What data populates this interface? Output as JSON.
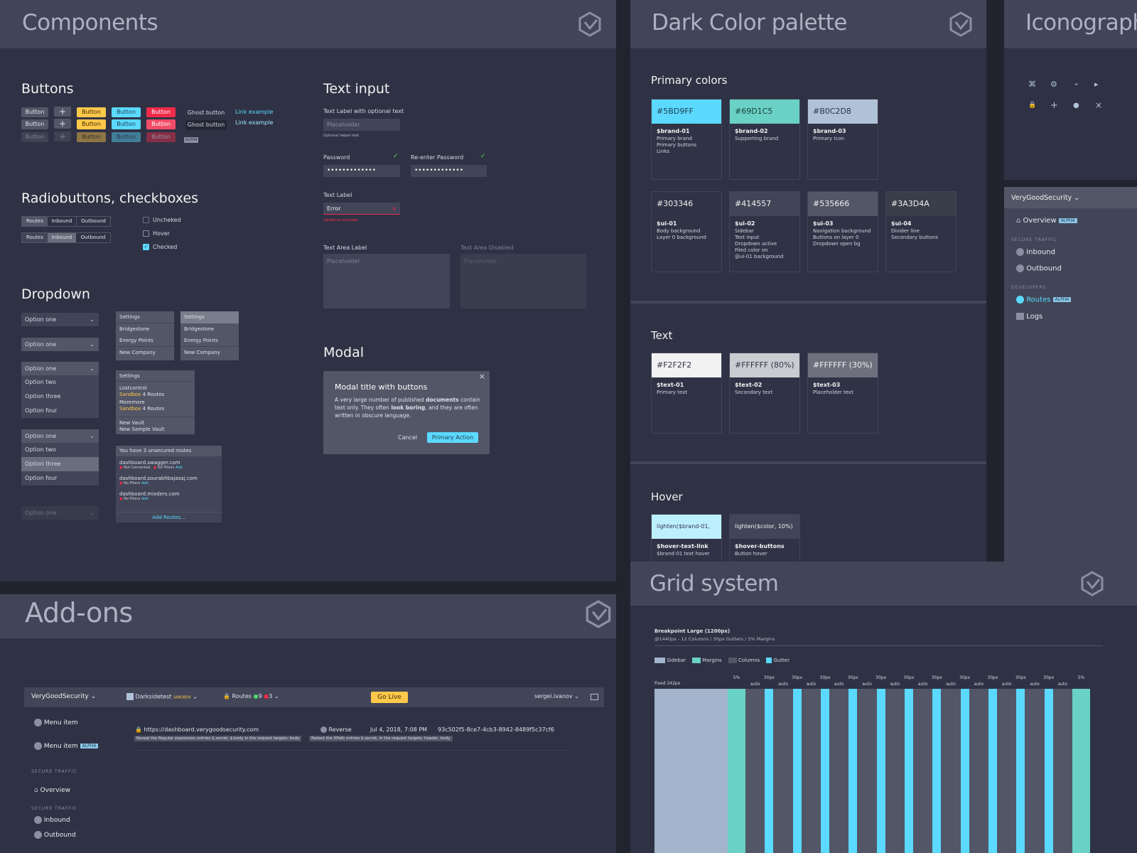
{
  "components": {
    "title": "Components",
    "buttons": {
      "title": "Buttons",
      "button_label": "Button",
      "plus_label": "+",
      "ghost_label": "Ghost button",
      "link_label": "Link example",
      "alpha": "ALPHA"
    },
    "radios": {
      "title": "Radiobuttons, checkboxes",
      "segments": [
        "Routes",
        "Inbound",
        "Outbound"
      ],
      "checkbox_labels": [
        "Uncheked",
        "Hover",
        "Checked"
      ],
      "check_mark": "✓"
    },
    "dropdown": {
      "title": "Dropdown",
      "selected": "Option one",
      "chevron": "⌄",
      "options": [
        "Option two",
        "Option three",
        "Option four"
      ],
      "menu_header": "Settings",
      "menu_items": [
        "Bridgestone",
        "Energy Points",
        "New Company"
      ],
      "vault_items": [
        {
          "name": "Lostcontrol",
          "env": "Sandbox",
          "routes": "4 Routes"
        },
        {
          "name": "Moremore",
          "env": "Sandbox",
          "routes": "4 Routes"
        }
      ],
      "vault_new": [
        "New Vault",
        "New Sample Vault"
      ],
      "unsecured": {
        "header": "You have 3 unsecured routes",
        "routes": [
          {
            "host": "dashboard.swagger.com",
            "status": "Not Connected",
            "filters": "No Filters",
            "add": "Add"
          },
          {
            "host": "dashboard.sourabhbajasaj.com",
            "filters": "No Filters",
            "add": "Add"
          },
          {
            "host": "dashboard.mixders.com",
            "filters": "No Filters",
            "add": "Add"
          }
        ],
        "footer": "Add Routes..."
      }
    },
    "text_input": {
      "title": "Text input",
      "label_optional": "Text Label with optional text",
      "placeholder": "Placeholder",
      "helper": "Optional helper text",
      "password_label": "Password",
      "reenter_label": "Re-enter Password",
      "password_dots": "•••••••••••••",
      "check_mark": "✓",
      "text_label": "Text Label",
      "error_value": "Error",
      "error_x": "×",
      "validation": "Validation message",
      "textarea_label": "Text Area Label",
      "textarea_disabled_label": "Text Area Disabled"
    },
    "modal": {
      "title": "Modal",
      "close": "×",
      "modal_title": "Modal title with buttons",
      "body_parts": [
        "A very large number of published ",
        "documents",
        " contain text only. They often ",
        "look boring",
        ", and they are often written in obscure language."
      ],
      "cancel": "Cancel",
      "primary": "Primary Action"
    }
  },
  "palette": {
    "title": "Dark Color palette",
    "primary_title": "Primary colors",
    "primary": [
      {
        "hex": "#5BD9FF",
        "name": "$brand-01",
        "desc": [
          "Primary brand",
          "Primary buttons",
          "Links"
        ]
      },
      {
        "hex": "#69D1C5",
        "name": "$brand-02",
        "desc": [
          "Supporting brand"
        ]
      },
      {
        "hex": "#B0C2D8",
        "name": "$brand-03",
        "desc": [
          "Primary Icon"
        ]
      }
    ],
    "ui": [
      {
        "hex": "#303346",
        "name": "$ui-01",
        "desc": [
          "Body background",
          "Layer 0 background"
        ]
      },
      {
        "hex": "#414557",
        "name": "$ui-02",
        "desc": [
          "Sidebar",
          "Text input",
          "Dropdown active",
          "Filed color on",
          "@ui-01 background"
        ]
      },
      {
        "hex": "#535666",
        "name": "$ui-03",
        "desc": [
          "Navigation background",
          "Buttons on layer 0",
          "Dropdown open bg"
        ]
      },
      {
        "hex": "#3A3D4A",
        "name": "$ui-04",
        "desc": [
          "Divider line",
          "Secondary buttons"
        ]
      }
    ],
    "text_title": "Text",
    "text": [
      {
        "hex": "#F2F2F2",
        "name": "$text-01",
        "desc": [
          "Primary text"
        ]
      },
      {
        "hex": "#FFFFFF (80%)",
        "name": "$text-02",
        "desc": [
          "Secondary text"
        ]
      },
      {
        "hex": "#FFFFFF (30%)",
        "name": "$text-03",
        "desc": [
          "Placeholder text"
        ]
      }
    ],
    "hover_title": "Hover",
    "hover": [
      {
        "hex": "lighten($brand-01, 20%)",
        "name": "$hover-text-link",
        "desc": [
          "$brand-01 text hover"
        ]
      },
      {
        "hex": "lighten($color, 10%)",
        "name": "$hover-buttons",
        "desc": [
          "Button hover"
        ]
      }
    ]
  },
  "iconography": {
    "title": "Iconography",
    "icons": [
      "⌘",
      "⚙",
      "⌄",
      "▸",
      "🔒",
      "+",
      "●",
      "×"
    ],
    "sidebar": {
      "brand": "VeryGoodSecurity",
      "chevron": "⌄",
      "overview": "Overview",
      "alpha": "ALPHA",
      "secure_traffic": "SECURE TRAFFIC",
      "inbound": "Inbound",
      "outbound": "Outbound",
      "developers": "DEVELOPERS",
      "routes": "Routes",
      "logs": "Logs"
    }
  },
  "addons": {
    "title": "Add-ons",
    "topbar": {
      "brand": "VeryGoodSecurity",
      "vault": "Darksidetest",
      "sandbox": "SANDBOX",
      "routes": "Routes",
      "green_count": "9",
      "red_count": "3",
      "go_live": "Go Live",
      "user": "sergei.ivanov"
    },
    "menu_item": "Menu item",
    "alpha": "ALPHA",
    "secure_traffic": "SECURE TRAFFIC",
    "overview": "Overview",
    "inbound": "Inbound",
    "outbound": "Outbound",
    "log": {
      "url": "https://dashboard.verygoodsecurity.com",
      "type": "Reverse",
      "date": "Jul 4, 2018, 7:08 PM",
      "id": "93c502f5-8ce7-4cb3-8942-8489f5c37cf6",
      "tag1": "Reveal the Regular expression entries $.secret, $.body in the request targets: body",
      "tag2": "Redact the XPath entries $.secret, in the request targets: header, body"
    }
  },
  "grid": {
    "title": "Grid system",
    "breakpoint": "Breakpoint Large (1200px)",
    "subtitle": "@1440px - 12 Columns / 30px Gutters / 5% Margins",
    "legend": [
      "Sidebar",
      "Margins",
      "Columns",
      "Gutter"
    ],
    "fixed_label": "Fixed 242px",
    "margin_label": "5%",
    "gutter_label": "30px",
    "column_label": "auto",
    "columns": 12
  },
  "colors": {
    "brand01": "#5BD9FF",
    "brand02": "#69D1C5",
    "brand03": "#B0C2D8",
    "ui01": "#303346",
    "ui02": "#414557",
    "ui03": "#535666",
    "yellow": "#FFC84A",
    "red": "#F02A4A"
  }
}
